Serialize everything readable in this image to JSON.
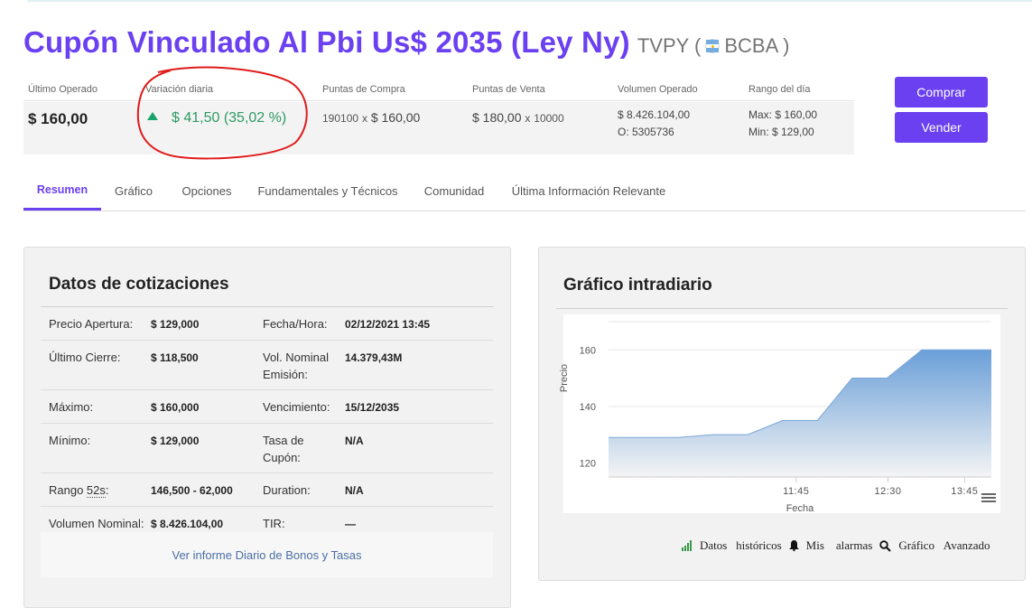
{
  "header": {
    "title": "Cupón Vinculado Al Pbi Us$ 2035 (Ley Ny)",
    "ticker_prefix": "TVPY (",
    "market": "BCBA )"
  },
  "quote": {
    "last": {
      "label": "Último Operado",
      "value": "$ 160,00"
    },
    "variation": {
      "label": "Variación diaria",
      "value": "$ 41,50 (35,02 %)"
    },
    "bid": {
      "label": "Puntas de Compra",
      "qty": "190100",
      "x": "x",
      "price": "$ 160,00"
    },
    "ask": {
      "label": "Puntas de Venta",
      "price": "$ 180,00",
      "x": "x",
      "qty": "10000"
    },
    "volume": {
      "label": "Volumen Operado",
      "line1": "$ 8.426.104,00",
      "line2": "O: 5305736"
    },
    "range": {
      "label": "Rango del día",
      "max": "Max: $ 160,00",
      "min": "Min: $ 129,00"
    }
  },
  "actions": {
    "buy": "Comprar",
    "sell": "Vender"
  },
  "tabs": [
    {
      "label": "Resumen"
    },
    {
      "label": "Gráfico"
    },
    {
      "label": "Opciones"
    },
    {
      "label": "Fundamentales y Técnicos"
    },
    {
      "label": "Comunidad"
    },
    {
      "label": "Última Información Relevante"
    }
  ],
  "quote_data": {
    "title": "Datos de cotizaciones",
    "rows": [
      {
        "l1": "Precio Apertura:",
        "v1": "$ 129,000",
        "l2": "Fecha/Hora:",
        "v2": "02/12/2021 13:45"
      },
      {
        "l1": "Último Cierre:",
        "v1": "$ 118,500",
        "l2": "Vol. Nominal Emisión:",
        "v2": "14.379,43M"
      },
      {
        "l1": "Máximo:",
        "v1": "$ 160,000",
        "l2": "Vencimiento:",
        "v2": "15/12/2035"
      },
      {
        "l1": "Mínimo:",
        "v1": "$ 129,000",
        "l2": "Tasa de Cupón:",
        "v2": "N/A"
      },
      {
        "l1a": "Rango ",
        "l1b": "52s",
        "l1c": ":",
        "v1": "146,500 - 62,000",
        "l2": "Duration:",
        "v2": "N/A"
      },
      {
        "l1": "Volumen Nominal:",
        "v1": "$ 8.426.104,00",
        "l2": "TIR:",
        "v2": "—"
      }
    ],
    "report_link": "Ver informe Diario de Bonos y Tasas"
  },
  "intraday": {
    "title": "Gráfico intradiario",
    "footer": {
      "datos": "Datos",
      "historicos": "históricos",
      "mis": "Mis",
      "alarmas": "alarmas",
      "grafico": "Gráfico",
      "avanzado": "Avanzado"
    }
  },
  "chart_data": {
    "type": "area",
    "xlabel": "Fecha",
    "ylabel": "Precio",
    "ylim": [
      115,
      170
    ],
    "yticks": [
      120,
      140,
      160
    ],
    "xticks": [
      "11:45",
      "12:30",
      "13:45"
    ],
    "grid": true,
    "color_top": "#6a9fd8",
    "color_bottom": "#f4f4f4",
    "series": [
      {
        "values": [
          129,
          129,
          129,
          130,
          130,
          135,
          135,
          150,
          150,
          160,
          160,
          160
        ]
      }
    ]
  }
}
